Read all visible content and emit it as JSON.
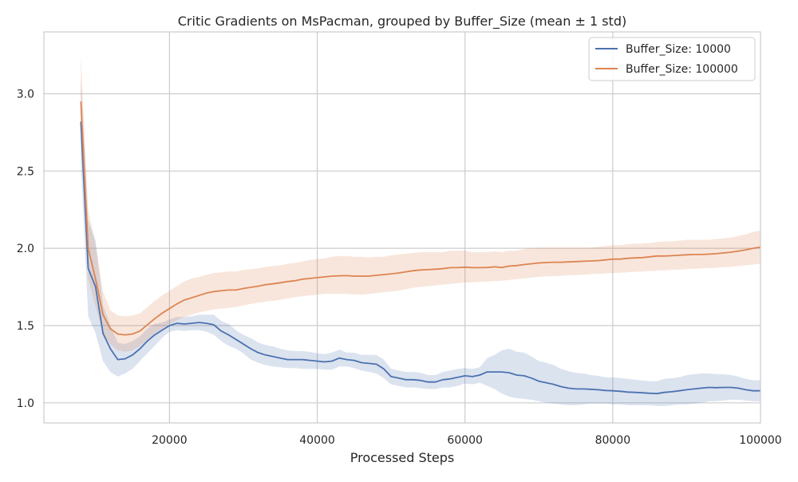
{
  "chart_data": {
    "type": "line",
    "title": "Critic Gradients on MsPacman, grouped by Buffer_Size (mean ± 1 std)",
    "xlabel": "Processed Steps",
    "ylabel": "",
    "xlim": [
      3000,
      100000
    ],
    "ylim": [
      0.87,
      3.4
    ],
    "x_ticks": [
      20000,
      40000,
      60000,
      80000,
      100000
    ],
    "x_tick_labels": [
      "20000",
      "40000",
      "60000",
      "80000",
      "100000"
    ],
    "y_ticks": [
      1.0,
      1.5,
      2.0,
      2.5,
      3.0
    ],
    "y_tick_labels": [
      "1.0",
      "1.5",
      "2.0",
      "2.5",
      "3.0"
    ],
    "grid": true,
    "legend_position": "top-right",
    "series": [
      {
        "name": "Buffer_Size: 10000",
        "color": "#4c72b0",
        "x": [
          8000,
          9000,
          10000,
          11000,
          12000,
          13000,
          14000,
          15000,
          16000,
          17000,
          18000,
          19000,
          20000,
          21000,
          22000,
          23000,
          24000,
          25000,
          26000,
          27000,
          28000,
          29000,
          30000,
          31000,
          32000,
          33000,
          34000,
          35000,
          36000,
          37000,
          38000,
          39000,
          40000,
          41000,
          42000,
          43000,
          44000,
          45000,
          46000,
          47000,
          48000,
          49000,
          50000,
          51000,
          52000,
          53000,
          54000,
          55000,
          56000,
          57000,
          58000,
          59000,
          60000,
          61000,
          62000,
          63000,
          64000,
          65000,
          66000,
          67000,
          68000,
          69000,
          70000,
          71000,
          72000,
          73000,
          74000,
          75000,
          76000,
          77000,
          78000,
          79000,
          80000,
          81000,
          82000,
          83000,
          84000,
          85000,
          86000,
          87000,
          88000,
          89000,
          90000,
          91000,
          92000,
          93000,
          94000,
          95000,
          96000,
          97000,
          98000,
          99000,
          100000
        ],
        "y": [
          2.82,
          1.87,
          1.75,
          1.45,
          1.35,
          1.28,
          1.285,
          1.31,
          1.35,
          1.4,
          1.44,
          1.47,
          1.5,
          1.515,
          1.51,
          1.515,
          1.52,
          1.515,
          1.505,
          1.465,
          1.44,
          1.41,
          1.38,
          1.35,
          1.325,
          1.31,
          1.3,
          1.29,
          1.28,
          1.28,
          1.28,
          1.275,
          1.27,
          1.265,
          1.27,
          1.29,
          1.28,
          1.275,
          1.26,
          1.255,
          1.25,
          1.22,
          1.17,
          1.16,
          1.15,
          1.15,
          1.145,
          1.135,
          1.135,
          1.15,
          1.155,
          1.165,
          1.175,
          1.17,
          1.18,
          1.2,
          1.2,
          1.2,
          1.195,
          1.18,
          1.175,
          1.16,
          1.14,
          1.13,
          1.12,
          1.105,
          1.095,
          1.09,
          1.09,
          1.088,
          1.085,
          1.08,
          1.078,
          1.075,
          1.07,
          1.068,
          1.065,
          1.062,
          1.06,
          1.068,
          1.072,
          1.078,
          1.085,
          1.09,
          1.095,
          1.1,
          1.098,
          1.1,
          1.1,
          1.095,
          1.085,
          1.078,
          1.078
        ],
        "lower": [
          2.55,
          1.56,
          1.45,
          1.27,
          1.2,
          1.17,
          1.19,
          1.22,
          1.27,
          1.32,
          1.37,
          1.42,
          1.46,
          1.47,
          1.465,
          1.47,
          1.47,
          1.46,
          1.44,
          1.4,
          1.37,
          1.35,
          1.32,
          1.28,
          1.26,
          1.245,
          1.235,
          1.23,
          1.225,
          1.225,
          1.22,
          1.22,
          1.22,
          1.215,
          1.215,
          1.235,
          1.235,
          1.225,
          1.21,
          1.2,
          1.19,
          1.16,
          1.12,
          1.11,
          1.1,
          1.1,
          1.095,
          1.09,
          1.09,
          1.1,
          1.1,
          1.11,
          1.125,
          1.12,
          1.13,
          1.11,
          1.09,
          1.06,
          1.04,
          1.03,
          1.025,
          1.02,
          1.01,
          1.0,
          0.995,
          0.99,
          0.985,
          0.985,
          0.99,
          0.995,
          0.995,
          0.995,
          0.99,
          0.99,
          0.985,
          0.985,
          0.985,
          0.985,
          0.98,
          0.98,
          0.985,
          0.99,
          0.99,
          0.995,
          1.0,
          1.01,
          1.01,
          1.015,
          1.02,
          1.02,
          1.015,
          1.01,
          1.01
        ],
        "upper": [
          3.1,
          2.18,
          2.05,
          1.63,
          1.5,
          1.39,
          1.38,
          1.4,
          1.43,
          1.48,
          1.51,
          1.52,
          1.54,
          1.555,
          1.555,
          1.56,
          1.57,
          1.57,
          1.57,
          1.53,
          1.51,
          1.47,
          1.44,
          1.42,
          1.39,
          1.375,
          1.365,
          1.35,
          1.34,
          1.335,
          1.335,
          1.33,
          1.32,
          1.315,
          1.325,
          1.345,
          1.325,
          1.325,
          1.31,
          1.31,
          1.31,
          1.28,
          1.22,
          1.21,
          1.2,
          1.2,
          1.195,
          1.18,
          1.18,
          1.2,
          1.21,
          1.22,
          1.225,
          1.22,
          1.23,
          1.29,
          1.31,
          1.34,
          1.35,
          1.33,
          1.325,
          1.3,
          1.27,
          1.26,
          1.245,
          1.22,
          1.205,
          1.195,
          1.19,
          1.18,
          1.175,
          1.165,
          1.165,
          1.16,
          1.155,
          1.15,
          1.145,
          1.14,
          1.14,
          1.156,
          1.159,
          1.166,
          1.18,
          1.185,
          1.19,
          1.19,
          1.186,
          1.185,
          1.18,
          1.17,
          1.155,
          1.146,
          1.146
        ]
      },
      {
        "name": "Buffer_Size: 100000",
        "color": "#dd8452",
        "x": [
          8000,
          9000,
          10000,
          11000,
          12000,
          13000,
          14000,
          15000,
          16000,
          17000,
          18000,
          19000,
          20000,
          21000,
          22000,
          23000,
          24000,
          25000,
          26000,
          27000,
          28000,
          29000,
          30000,
          31000,
          32000,
          33000,
          34000,
          35000,
          36000,
          37000,
          38000,
          39000,
          40000,
          41000,
          42000,
          43000,
          44000,
          45000,
          46000,
          47000,
          48000,
          49000,
          50000,
          51000,
          52000,
          53000,
          54000,
          55000,
          56000,
          57000,
          58000,
          59000,
          60000,
          61000,
          62000,
          63000,
          64000,
          65000,
          66000,
          67000,
          68000,
          69000,
          70000,
          71000,
          72000,
          73000,
          74000,
          75000,
          76000,
          77000,
          78000,
          79000,
          80000,
          81000,
          82000,
          83000,
          84000,
          85000,
          86000,
          87000,
          88000,
          89000,
          90000,
          91000,
          92000,
          93000,
          94000,
          95000,
          96000,
          97000,
          98000,
          99000,
          100000
        ],
        "y": [
          2.95,
          2.0,
          1.8,
          1.57,
          1.48,
          1.445,
          1.44,
          1.445,
          1.465,
          1.505,
          1.545,
          1.58,
          1.61,
          1.64,
          1.665,
          1.68,
          1.695,
          1.71,
          1.72,
          1.725,
          1.73,
          1.73,
          1.74,
          1.748,
          1.755,
          1.765,
          1.77,
          1.777,
          1.785,
          1.79,
          1.8,
          1.805,
          1.81,
          1.815,
          1.82,
          1.822,
          1.823,
          1.82,
          1.82,
          1.82,
          1.825,
          1.83,
          1.835,
          1.84,
          1.848,
          1.855,
          1.86,
          1.862,
          1.865,
          1.868,
          1.875,
          1.875,
          1.878,
          1.875,
          1.875,
          1.876,
          1.88,
          1.876,
          1.885,
          1.888,
          1.895,
          1.9,
          1.905,
          1.908,
          1.91,
          1.91,
          1.912,
          1.914,
          1.916,
          1.918,
          1.92,
          1.925,
          1.93,
          1.93,
          1.935,
          1.938,
          1.94,
          1.945,
          1.95,
          1.95,
          1.952,
          1.955,
          1.958,
          1.96,
          1.96,
          1.962,
          1.965,
          1.97,
          1.975,
          1.982,
          1.99,
          2.0,
          2.008
        ],
        "lower": [
          2.7,
          1.8,
          1.62,
          1.45,
          1.38,
          1.34,
          1.33,
          1.34,
          1.37,
          1.41,
          1.45,
          1.48,
          1.51,
          1.535,
          1.555,
          1.57,
          1.585,
          1.595,
          1.605,
          1.61,
          1.615,
          1.62,
          1.63,
          1.64,
          1.648,
          1.655,
          1.66,
          1.667,
          1.675,
          1.685,
          1.69,
          1.695,
          1.7,
          1.705,
          1.705,
          1.705,
          1.705,
          1.7,
          1.7,
          1.705,
          1.71,
          1.715,
          1.72,
          1.725,
          1.735,
          1.745,
          1.75,
          1.755,
          1.76,
          1.765,
          1.77,
          1.775,
          1.778,
          1.78,
          1.783,
          1.785,
          1.788,
          1.79,
          1.795,
          1.8,
          1.805,
          1.81,
          1.815,
          1.818,
          1.82,
          1.822,
          1.825,
          1.827,
          1.83,
          1.833,
          1.835,
          1.838,
          1.84,
          1.842,
          1.845,
          1.848,
          1.85,
          1.853,
          1.855,
          1.857,
          1.86,
          1.862,
          1.865,
          1.867,
          1.87,
          1.872,
          1.875,
          1.878,
          1.88,
          1.885,
          1.89,
          1.895,
          1.9
        ],
        "upper": [
          3.25,
          2.25,
          2.02,
          1.72,
          1.6,
          1.565,
          1.56,
          1.565,
          1.58,
          1.62,
          1.66,
          1.695,
          1.725,
          1.755,
          1.785,
          1.805,
          1.815,
          1.83,
          1.84,
          1.845,
          1.85,
          1.85,
          1.86,
          1.865,
          1.87,
          1.88,
          1.885,
          1.89,
          1.9,
          1.905,
          1.915,
          1.925,
          1.93,
          1.935,
          1.945,
          1.95,
          1.95,
          1.945,
          1.945,
          1.94,
          1.945,
          1.945,
          1.955,
          1.96,
          1.965,
          1.97,
          1.975,
          1.975,
          1.975,
          1.975,
          1.985,
          1.985,
          1.985,
          1.975,
          1.975,
          1.975,
          1.98,
          1.975,
          1.985,
          1.985,
          1.995,
          2.0,
          2.005,
          2.005,
          2.005,
          2.005,
          2.005,
          2.005,
          2.005,
          2.005,
          2.01,
          2.015,
          2.02,
          2.02,
          2.025,
          2.03,
          2.03,
          2.035,
          2.04,
          2.045,
          2.045,
          2.05,
          2.055,
          2.055,
          2.055,
          2.055,
          2.06,
          2.065,
          2.07,
          2.08,
          2.09,
          2.105,
          2.115
        ]
      }
    ]
  }
}
